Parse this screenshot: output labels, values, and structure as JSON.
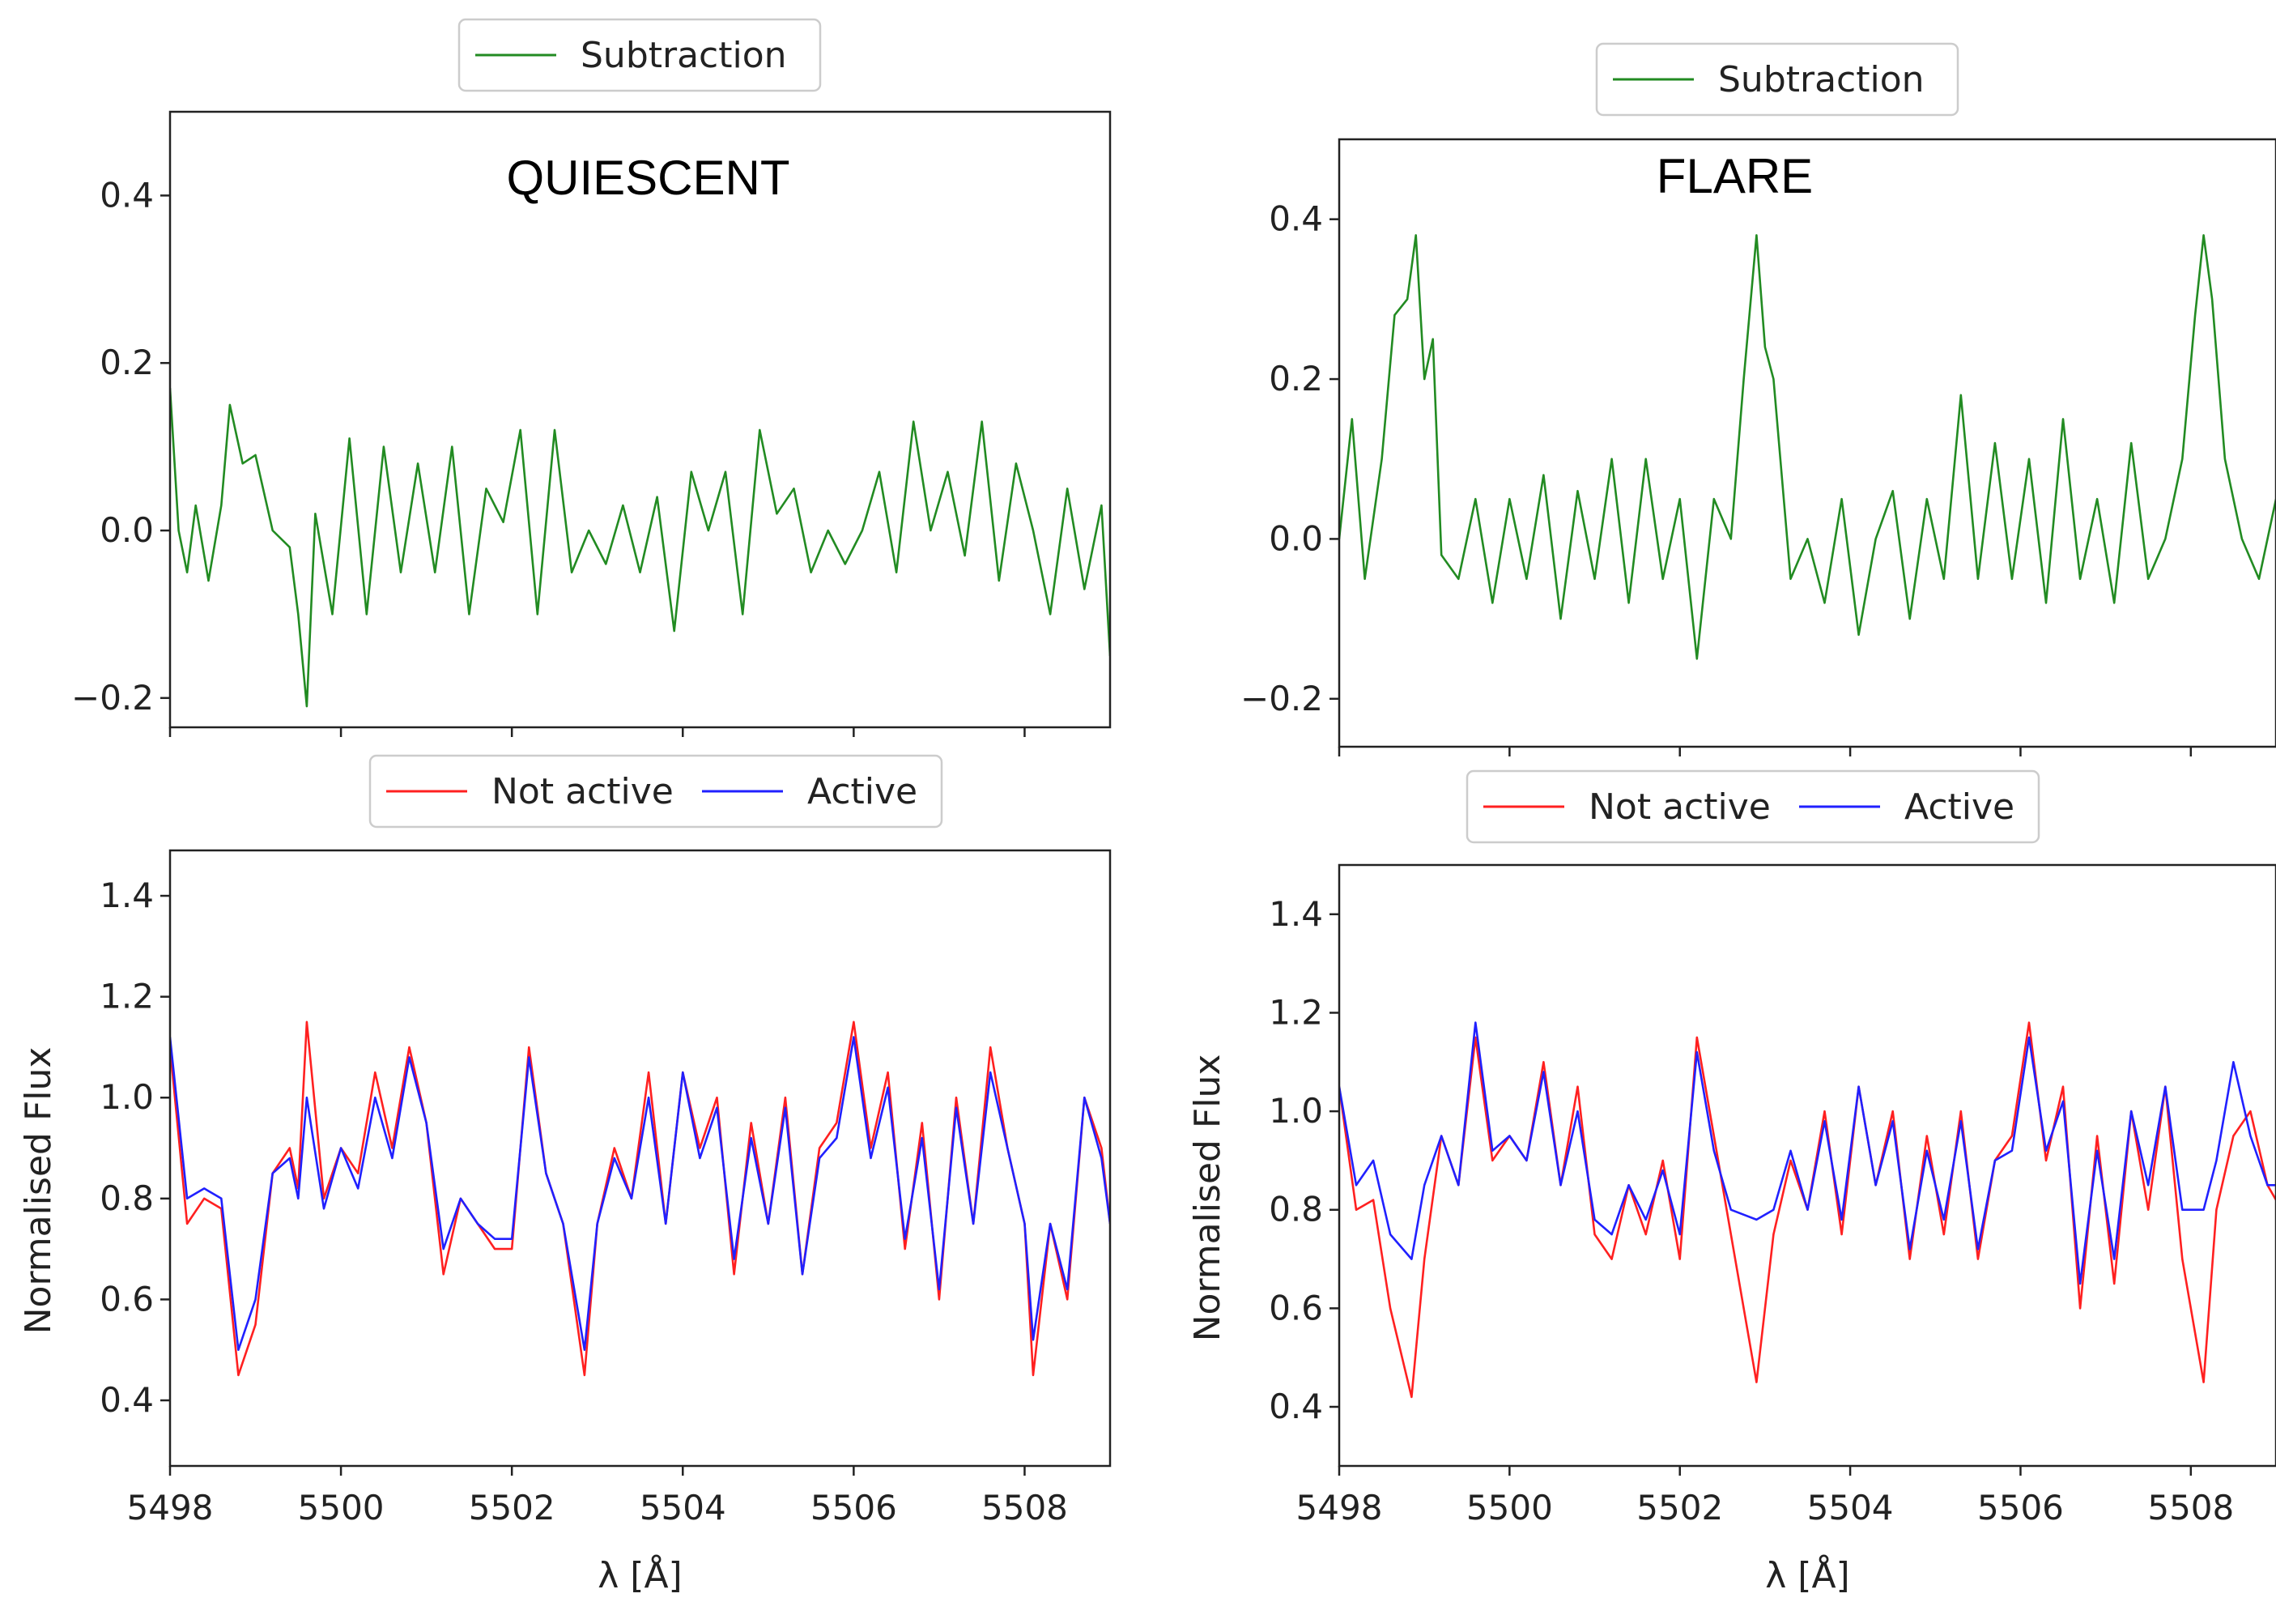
{
  "chart_data": [
    {
      "type": "line",
      "title": "QUIESCENT",
      "xlabel": "",
      "ylabel": "",
      "xlim": [
        5498,
        5509
      ],
      "ylim": [
        -0.235,
        0.5
      ],
      "yticks": [
        "0.4",
        "0.2",
        "0.0",
        "−0.2"
      ],
      "ytick_values": [
        0.4,
        0.2,
        0.0,
        -0.2
      ],
      "xticks": [
        "",
        "",
        "",
        "",
        "",
        ""
      ],
      "xtick_values": [
        5498,
        5500,
        5502,
        5504,
        5506,
        5508
      ],
      "legend": "top-center, above axes",
      "series": [
        {
          "name": "Subtraction",
          "color": "#228b22",
          "x": [
            5498.0,
            5498.1,
            5498.2,
            5498.3,
            5498.45,
            5498.6,
            5498.7,
            5498.85,
            5499.0,
            5499.2,
            5499.4,
            5499.5,
            5499.6,
            5499.7,
            5499.9,
            5500.1,
            5500.3,
            5500.5,
            5500.7,
            5500.9,
            5501.1,
            5501.3,
            5501.5,
            5501.7,
            5501.9,
            5502.1,
            5502.3,
            5502.5,
            5502.7,
            5502.9,
            5503.1,
            5503.3,
            5503.5,
            5503.7,
            5503.9,
            5504.1,
            5504.3,
            5504.5,
            5504.7,
            5504.9,
            5505.1,
            5505.3,
            5505.5,
            5505.7,
            5505.9,
            5506.1,
            5506.3,
            5506.5,
            5506.7,
            5506.9,
            5507.1,
            5507.3,
            5507.5,
            5507.7,
            5507.9,
            5508.1,
            5508.3,
            5508.5,
            5508.7,
            5508.9,
            5509.0
          ],
          "y": [
            0.17,
            0.0,
            -0.05,
            0.03,
            -0.06,
            0.03,
            0.15,
            0.08,
            0.09,
            0.0,
            -0.02,
            -0.1,
            -0.21,
            0.02,
            -0.1,
            0.11,
            -0.1,
            0.1,
            -0.05,
            0.08,
            -0.05,
            0.1,
            -0.1,
            0.05,
            0.01,
            0.12,
            -0.1,
            0.12,
            -0.05,
            0.0,
            -0.04,
            0.03,
            -0.05,
            0.04,
            -0.12,
            0.07,
            0.0,
            0.07,
            -0.1,
            0.12,
            0.02,
            0.05,
            -0.05,
            0.0,
            -0.04,
            0.0,
            0.07,
            -0.05,
            0.13,
            0.0,
            0.07,
            -0.03,
            0.13,
            -0.06,
            0.08,
            0.0,
            -0.1,
            0.05,
            -0.07,
            0.03,
            -0.15
          ]
        }
      ]
    },
    {
      "type": "line",
      "title": "",
      "xlabel": "λ  [Å]",
      "ylabel": "Normalised Flux",
      "xlim": [
        5498,
        5509
      ],
      "ylim": [
        0.27,
        1.49
      ],
      "yticks": [
        "1.4",
        "1.2",
        "1.0",
        "0.8",
        "0.6",
        "0.4"
      ],
      "ytick_values": [
        1.4,
        1.2,
        1.0,
        0.8,
        0.6,
        0.4
      ],
      "xticks": [
        "5498",
        "5500",
        "5502",
        "5504",
        "5506",
        "5508"
      ],
      "xtick_values": [
        5498,
        5500,
        5502,
        5504,
        5506,
        5508
      ],
      "legend": "top-center, above axes",
      "series": [
        {
          "name": "Not active",
          "color": "#ff2020",
          "x": [
            5498.0,
            5498.2,
            5498.4,
            5498.6,
            5498.8,
            5499.0,
            5499.2,
            5499.4,
            5499.5,
            5499.6,
            5499.8,
            5500.0,
            5500.2,
            5500.4,
            5500.6,
            5500.8,
            5501.0,
            5501.2,
            5501.4,
            5501.6,
            5501.8,
            5502.0,
            5502.2,
            5502.4,
            5502.6,
            5502.85,
            5503.0,
            5503.2,
            5503.4,
            5503.6,
            5503.8,
            5504.0,
            5504.2,
            5504.4,
            5504.6,
            5504.8,
            5505.0,
            5505.2,
            5505.4,
            5505.6,
            5505.8,
            5506.0,
            5506.2,
            5506.4,
            5506.6,
            5506.8,
            5507.0,
            5507.2,
            5507.4,
            5507.6,
            5507.8,
            5508.0,
            5508.1,
            5508.3,
            5508.5,
            5508.7,
            5508.9,
            5509.0
          ],
          "y": [
            1.1,
            0.75,
            0.8,
            0.78,
            0.45,
            0.55,
            0.85,
            0.9,
            0.82,
            1.15,
            0.8,
            0.9,
            0.85,
            1.05,
            0.9,
            1.1,
            0.95,
            0.65,
            0.8,
            0.75,
            0.7,
            0.7,
            1.1,
            0.85,
            0.75,
            0.45,
            0.75,
            0.9,
            0.8,
            1.05,
            0.75,
            1.05,
            0.9,
            1.0,
            0.65,
            0.95,
            0.75,
            1.0,
            0.65,
            0.9,
            0.95,
            1.15,
            0.9,
            1.05,
            0.7,
            0.95,
            0.6,
            1.0,
            0.75,
            1.1,
            0.9,
            0.75,
            0.45,
            0.75,
            0.6,
            1.0,
            0.9,
            0.75
          ]
        },
        {
          "name": "Active",
          "color": "#2020ff",
          "x": [
            5498.0,
            5498.2,
            5498.4,
            5498.6,
            5498.8,
            5499.0,
            5499.2,
            5499.4,
            5499.5,
            5499.6,
            5499.8,
            5500.0,
            5500.2,
            5500.4,
            5500.6,
            5500.8,
            5501.0,
            5501.2,
            5501.4,
            5501.6,
            5501.8,
            5502.0,
            5502.2,
            5502.4,
            5502.6,
            5502.85,
            5503.0,
            5503.2,
            5503.4,
            5503.6,
            5503.8,
            5504.0,
            5504.2,
            5504.4,
            5504.6,
            5504.8,
            5505.0,
            5505.2,
            5505.4,
            5505.6,
            5505.8,
            5506.0,
            5506.2,
            5506.4,
            5506.6,
            5506.8,
            5507.0,
            5507.2,
            5507.4,
            5507.6,
            5507.8,
            5508.0,
            5508.1,
            5508.3,
            5508.5,
            5508.7,
            5508.9,
            5509.0
          ],
          "y": [
            1.12,
            0.8,
            0.82,
            0.8,
            0.5,
            0.6,
            0.85,
            0.88,
            0.8,
            1.0,
            0.78,
            0.9,
            0.82,
            1.0,
            0.88,
            1.08,
            0.95,
            0.7,
            0.8,
            0.75,
            0.72,
            0.72,
            1.08,
            0.85,
            0.75,
            0.5,
            0.75,
            0.88,
            0.8,
            1.0,
            0.75,
            1.05,
            0.88,
            0.98,
            0.68,
            0.92,
            0.75,
            0.98,
            0.65,
            0.88,
            0.92,
            1.12,
            0.88,
            1.02,
            0.72,
            0.92,
            0.62,
            0.98,
            0.75,
            1.05,
            0.9,
            0.75,
            0.52,
            0.75,
            0.62,
            1.0,
            0.88,
            0.75
          ]
        }
      ]
    },
    {
      "type": "line",
      "title": "FLARE",
      "xlabel": "",
      "ylabel": "",
      "xlim": [
        5498,
        5509
      ],
      "ylim": [
        -0.26,
        0.5
      ],
      "yticks": [
        "0.4",
        "0.2",
        "0.0",
        "−0.2"
      ],
      "ytick_values": [
        0.4,
        0.2,
        0.0,
        -0.2
      ],
      "xticks": [
        "",
        "",
        "",
        "",
        "",
        ""
      ],
      "xtick_values": [
        5498,
        5500,
        5502,
        5504,
        5506,
        5508
      ],
      "legend": "top-center, above axes",
      "series": [
        {
          "name": "Subtraction",
          "color": "#228b22",
          "x": [
            5498.0,
            5498.15,
            5498.3,
            5498.5,
            5498.65,
            5498.8,
            5498.9,
            5499.0,
            5499.1,
            5499.2,
            5499.4,
            5499.6,
            5499.8,
            5500.0,
            5500.2,
            5500.4,
            5500.6,
            5500.8,
            5501.0,
            5501.2,
            5501.4,
            5501.6,
            5501.8,
            5502.0,
            5502.2,
            5502.4,
            5502.6,
            5502.75,
            5502.9,
            5503.0,
            5503.1,
            5503.3,
            5503.5,
            5503.7,
            5503.9,
            5504.1,
            5504.3,
            5504.5,
            5504.7,
            5504.9,
            5505.1,
            5505.3,
            5505.5,
            5505.7,
            5505.9,
            5506.1,
            5506.3,
            5506.5,
            5506.7,
            5506.9,
            5507.1,
            5507.3,
            5507.5,
            5507.7,
            5507.9,
            5508.05,
            5508.15,
            5508.25,
            5508.4,
            5508.6,
            5508.8,
            5509.0
          ],
          "y": [
            0.0,
            0.15,
            -0.05,
            0.1,
            0.28,
            0.3,
            0.38,
            0.2,
            0.25,
            -0.02,
            -0.05,
            0.05,
            -0.08,
            0.05,
            -0.05,
            0.08,
            -0.1,
            0.06,
            -0.05,
            0.1,
            -0.08,
            0.1,
            -0.05,
            0.05,
            -0.15,
            0.05,
            0.0,
            0.2,
            0.38,
            0.24,
            0.2,
            -0.05,
            0.0,
            -0.08,
            0.05,
            -0.12,
            0.0,
            0.06,
            -0.1,
            0.05,
            -0.05,
            0.18,
            -0.05,
            0.12,
            -0.05,
            0.1,
            -0.08,
            0.15,
            -0.05,
            0.05,
            -0.08,
            0.12,
            -0.05,
            0.0,
            0.1,
            0.28,
            0.38,
            0.3,
            0.1,
            0.0,
            -0.05,
            0.05
          ]
        }
      ]
    },
    {
      "type": "line",
      "title": "",
      "xlabel": "λ  [Å]",
      "ylabel": "Normalised Flux",
      "xlim": [
        5498,
        5509
      ],
      "ylim": [
        0.28,
        1.5
      ],
      "yticks": [
        "1.4",
        "1.2",
        "1.0",
        "0.8",
        "0.6",
        "0.4"
      ],
      "ytick_values": [
        1.4,
        1.2,
        1.0,
        0.8,
        0.6,
        0.4
      ],
      "xticks": [
        "5498",
        "5500",
        "5502",
        "5504",
        "5506",
        "5508"
      ],
      "xtick_values": [
        5498,
        5500,
        5502,
        5504,
        5506,
        5508
      ],
      "legend": "top-center, above axes",
      "series": [
        {
          "name": "Not active",
          "color": "#ff2020",
          "x": [
            5498.0,
            5498.2,
            5498.4,
            5498.6,
            5498.85,
            5499.0,
            5499.2,
            5499.4,
            5499.6,
            5499.8,
            5500.0,
            5500.2,
            5500.4,
            5500.6,
            5500.8,
            5501.0,
            5501.2,
            5501.4,
            5501.6,
            5501.8,
            5502.0,
            5502.2,
            5502.4,
            5502.6,
            5502.9,
            5503.1,
            5503.3,
            5503.5,
            5503.7,
            5503.9,
            5504.1,
            5504.3,
            5504.5,
            5504.7,
            5504.9,
            5505.1,
            5505.3,
            5505.5,
            5505.7,
            5505.9,
            5506.1,
            5506.3,
            5506.5,
            5506.7,
            5506.9,
            5507.1,
            5507.3,
            5507.5,
            5507.7,
            5507.9,
            5508.15,
            5508.3,
            5508.5,
            5508.7,
            5508.9,
            5509.0
          ],
          "y": [
            1.05,
            0.8,
            0.82,
            0.6,
            0.42,
            0.7,
            0.95,
            0.85,
            1.15,
            0.9,
            0.95,
            0.9,
            1.1,
            0.85,
            1.05,
            0.75,
            0.7,
            0.85,
            0.75,
            0.9,
            0.7,
            1.15,
            0.95,
            0.75,
            0.45,
            0.75,
            0.9,
            0.8,
            1.0,
            0.75,
            1.05,
            0.85,
            1.0,
            0.7,
            0.95,
            0.75,
            1.0,
            0.7,
            0.9,
            0.95,
            1.18,
            0.9,
            1.05,
            0.6,
            0.95,
            0.65,
            1.0,
            0.8,
            1.05,
            0.7,
            0.45,
            0.8,
            0.95,
            1.0,
            0.85,
            0.82
          ]
        },
        {
          "name": "Active",
          "color": "#2020ff",
          "x": [
            5498.0,
            5498.2,
            5498.4,
            5498.6,
            5498.85,
            5499.0,
            5499.2,
            5499.4,
            5499.6,
            5499.8,
            5500.0,
            5500.2,
            5500.4,
            5500.6,
            5500.8,
            5501.0,
            5501.2,
            5501.4,
            5501.6,
            5501.8,
            5502.0,
            5502.2,
            5502.4,
            5502.6,
            5502.9,
            5503.1,
            5503.3,
            5503.5,
            5503.7,
            5503.9,
            5504.1,
            5504.3,
            5504.5,
            5504.7,
            5504.9,
            5505.1,
            5505.3,
            5505.5,
            5505.7,
            5505.9,
            5506.1,
            5506.3,
            5506.5,
            5506.7,
            5506.9,
            5507.1,
            5507.3,
            5507.5,
            5507.7,
            5507.9,
            5508.15,
            5508.3,
            5508.5,
            5508.7,
            5508.9,
            5509.0
          ],
          "y": [
            1.05,
            0.85,
            0.9,
            0.75,
            0.7,
            0.85,
            0.95,
            0.85,
            1.18,
            0.92,
            0.95,
            0.9,
            1.08,
            0.85,
            1.0,
            0.78,
            0.75,
            0.85,
            0.78,
            0.88,
            0.75,
            1.12,
            0.92,
            0.8,
            0.78,
            0.8,
            0.92,
            0.8,
            0.98,
            0.78,
            1.05,
            0.85,
            0.98,
            0.72,
            0.92,
            0.78,
            0.98,
            0.72,
            0.9,
            0.92,
            1.15,
            0.92,
            1.02,
            0.65,
            0.92,
            0.7,
            1.0,
            0.85,
            1.05,
            0.8,
            0.8,
            0.9,
            1.1,
            0.95,
            0.85,
            0.85
          ]
        }
      ]
    }
  ]
}
